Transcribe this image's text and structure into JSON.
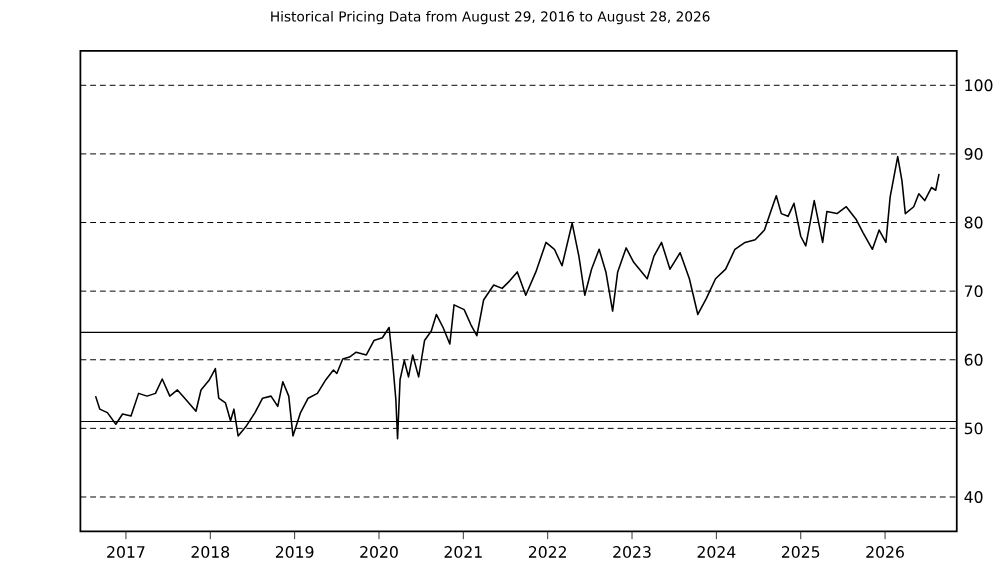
{
  "chart_data": {
    "type": "line",
    "title": "Historical Pricing Data from August 29, 2016 to August 28, 2026",
    "x": [
      2016.64,
      2016.69,
      2016.78,
      2016.88,
      2016.96,
      2017.06,
      2017.15,
      2017.25,
      2017.35,
      2017.43,
      2017.52,
      2017.61,
      2017.71,
      2017.83,
      2017.89,
      2017.99,
      2018.06,
      2018.1,
      2018.18,
      2018.24,
      2018.28,
      2018.33,
      2018.43,
      2018.53,
      2018.62,
      2018.72,
      2018.8,
      2018.86,
      2018.93,
      2018.98,
      2019.07,
      2019.16,
      2019.27,
      2019.37,
      2019.46,
      2019.5,
      2019.57,
      2019.65,
      2019.73,
      2019.85,
      2019.94,
      2020.04,
      2020.12,
      2020.16,
      2020.2,
      2020.22,
      2020.25,
      2020.3,
      2020.35,
      2020.4,
      2020.47,
      2020.54,
      2020.62,
      2020.68,
      2020.76,
      2020.84,
      2020.89,
      2021.01,
      2021.09,
      2021.16,
      2021.24,
      2021.36,
      2021.46,
      2021.55,
      2021.64,
      2021.74,
      2021.86,
      2021.98,
      2022.08,
      2022.17,
      2022.29,
      2022.37,
      2022.44,
      2022.52,
      2022.61,
      2022.69,
      2022.77,
      2022.83,
      2022.93,
      2023.02,
      2023.18,
      2023.26,
      2023.35,
      2023.45,
      2023.57,
      2023.68,
      2023.78,
      2023.88,
      2023.99,
      2024.11,
      2024.22,
      2024.34,
      2024.46,
      2024.57,
      2024.65,
      2024.71,
      2024.77,
      2024.85,
      2024.92,
      2025.0,
      2025.06,
      2025.16,
      2025.26,
      2025.31,
      2025.43,
      2025.54,
      2025.66,
      2025.74,
      2025.85,
      2025.93,
      2026.01,
      2026.06,
      2026.15,
      2026.2,
      2026.24,
      2026.34,
      2026.4,
      2026.47,
      2026.55,
      2026.6,
      2026.64
    ],
    "series": [
      {
        "color": "#000000",
        "values": [
          54.7,
          52.8,
          52.3,
          50.6,
          52.1,
          51.8,
          55.1,
          54.7,
          55.1,
          57.2,
          54.7,
          55.6,
          54.2,
          52.5,
          55.6,
          57.1,
          58.7,
          54.4,
          53.7,
          51.1,
          52.8,
          48.9,
          50.4,
          52.3,
          54.4,
          54.7,
          53.2,
          56.8,
          54.7,
          48.9,
          52.3,
          54.4,
          55.1,
          57.1,
          58.5,
          58.0,
          60.1,
          60.4,
          61.1,
          60.7,
          62.8,
          63.2,
          64.7,
          59.9,
          54.2,
          48.5,
          57.1,
          59.9,
          57.5,
          60.7,
          57.5,
          62.8,
          64.2,
          66.6,
          64.7,
          62.3,
          68.0,
          67.3,
          65.1,
          63.5,
          68.7,
          70.9,
          70.4,
          71.5,
          72.8,
          69.4,
          72.8,
          77.1,
          76.1,
          73.7,
          79.9,
          75.1,
          69.4,
          73.2,
          76.1,
          72.8,
          67.1,
          72.8,
          76.3,
          74.2,
          71.8,
          75.1,
          77.1,
          73.2,
          75.6,
          71.8,
          66.6,
          68.9,
          71.8,
          73.2,
          76.1,
          77.1,
          77.5,
          78.9,
          81.8,
          83.9,
          81.3,
          80.9,
          82.8,
          78.0,
          76.6,
          83.2,
          77.1,
          81.6,
          81.3,
          82.3,
          80.4,
          78.5,
          76.1,
          78.9,
          77.1,
          83.7,
          89.6,
          86.1,
          81.3,
          82.3,
          84.2,
          83.2,
          85.1,
          84.7,
          87.1
        ]
      }
    ],
    "xlim": [
      2016.46,
      2026.85
    ],
    "xticks": [
      2017,
      2018,
      2019,
      2020,
      2021,
      2022,
      2023,
      2024,
      2025,
      2026
    ],
    "ylim": [
      35,
      105
    ],
    "yticks": [
      40,
      50,
      60,
      70,
      80,
      90,
      100
    ],
    "grid": "y",
    "line_style": "solid",
    "marker": "none",
    "ref_lines": [
      {
        "axis": "y",
        "value": 64,
        "color": "#000000",
        "line_style": "solid"
      },
      {
        "axis": "y",
        "value": 51,
        "color": "#000000",
        "line_style": "solid"
      }
    ]
  }
}
